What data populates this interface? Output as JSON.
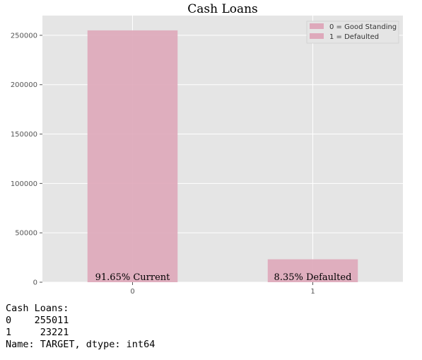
{
  "chart_data": {
    "type": "bar",
    "title": "Cash Loans",
    "categories": [
      "0",
      "1"
    ],
    "values": [
      255011,
      23221
    ],
    "ylim": [
      0,
      270000
    ],
    "yticks": [
      0,
      50000,
      100000,
      150000,
      200000,
      250000
    ],
    "ytick_labels": [
      "0",
      "50000",
      "100000",
      "150000",
      "200000",
      "250000"
    ],
    "bar_color": "#dea9bb",
    "bar_annotations": [
      "91.65% Current",
      "8.35% Defaulted"
    ],
    "legend": [
      "0 = Good Standing",
      "1 = Defaulted"
    ],
    "legend_placement": "top-right",
    "grid": true,
    "background_color": "#e5e5e5",
    "xlabel": "",
    "ylabel": ""
  },
  "console": {
    "lines": [
      "Cash Loans:",
      "0    255011",
      "1     23221",
      "Name: TARGET, dtype: int64"
    ]
  }
}
